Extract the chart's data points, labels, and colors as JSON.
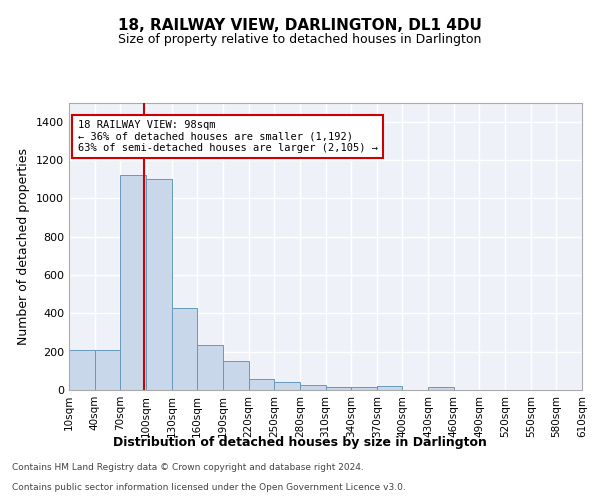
{
  "title": "18, RAILWAY VIEW, DARLINGTON, DL1 4DU",
  "subtitle": "Size of property relative to detached houses in Darlington",
  "xlabel": "Distribution of detached houses by size in Darlington",
  "ylabel": "Number of detached properties",
  "footer_line1": "Contains HM Land Registry data © Crown copyright and database right 2024.",
  "footer_line2": "Contains public sector information licensed under the Open Government Licence v3.0.",
  "annotation_line1": "18 RAILWAY VIEW: 98sqm",
  "annotation_line2": "← 36% of detached houses are smaller (1,192)",
  "annotation_line3": "63% of semi-detached houses are larger (2,105) →",
  "property_sqm": 98,
  "bin_edges": [
    10,
    40,
    70,
    100,
    130,
    160,
    190,
    220,
    250,
    280,
    310,
    340,
    370,
    400,
    430,
    460,
    490,
    520,
    550,
    580,
    610
  ],
  "bar_heights": [
    210,
    210,
    1120,
    1100,
    430,
    235,
    150,
    60,
    40,
    25,
    15,
    15,
    20,
    0,
    15,
    0,
    0,
    0,
    0,
    0
  ],
  "bar_color": "#c8d8ea",
  "bar_edge_color": "#6699bb",
  "vline_color": "#cc0000",
  "vline_x": 98,
  "annotation_box_color": "#cc0000",
  "ylim": [
    0,
    1500
  ],
  "yticks": [
    0,
    200,
    400,
    600,
    800,
    1000,
    1200,
    1400
  ],
  "background_color": "#eef2f8",
  "grid_color": "#d8dde8",
  "title_fontsize": 11,
  "subtitle_fontsize": 9,
  "ylabel_fontsize": 9,
  "xlabel_fontsize": 9,
  "tick_fontsize": 8,
  "footer_fontsize": 6.5
}
